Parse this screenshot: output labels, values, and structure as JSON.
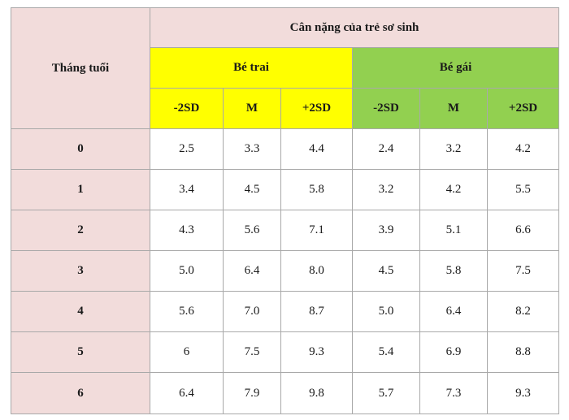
{
  "table": {
    "corner_header": "Tháng tuổi",
    "title": "Cân nặng của trẻ sơ sinh",
    "group_boy": "Bé trai",
    "group_girl": "Bé gái",
    "sub_headers": [
      "-2SD",
      "M",
      "+2SD",
      "-2SD",
      "M",
      "+2SD"
    ],
    "rows": [
      {
        "month": "0",
        "values": [
          "2.5",
          "3.3",
          "4.4",
          "2.4",
          "3.2",
          "4.2"
        ]
      },
      {
        "month": "1",
        "values": [
          "3.4",
          "4.5",
          "5.8",
          "3.2",
          "4.2",
          "5.5"
        ]
      },
      {
        "month": "2",
        "values": [
          "4.3",
          "5.6",
          "7.1",
          "3.9",
          "5.1",
          "6.6"
        ]
      },
      {
        "month": "3",
        "values": [
          "5.0",
          "6.4",
          "8.0",
          "4.5",
          "5.8",
          "7.5"
        ]
      },
      {
        "month": "4",
        "values": [
          "5.6",
          "7.0",
          "8.7",
          "5.0",
          "6.4",
          "8.2"
        ]
      },
      {
        "month": "5",
        "values": [
          "6",
          "7.5",
          "9.3",
          "5.4",
          "6.9",
          "8.8"
        ]
      },
      {
        "month": "6",
        "values": [
          "6.4",
          "7.9",
          "9.8",
          "5.7",
          "7.3",
          "9.3"
        ]
      }
    ],
    "colors": {
      "header_pink": "#f2dcdb",
      "boy_yellow": "#ffff00",
      "girl_green": "#92d050",
      "border": "#a9a9a9"
    }
  }
}
